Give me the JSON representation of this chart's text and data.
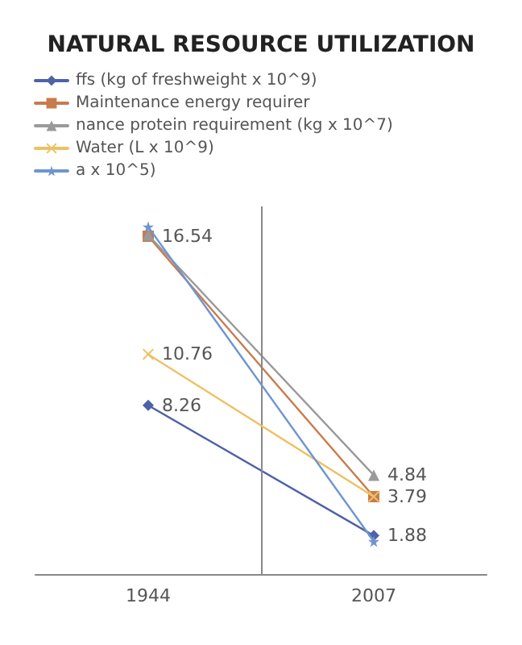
{
  "chart_data": {
    "type": "line",
    "title": "NATURAL RESOURCE UTILIZATION",
    "x": [
      1944,
      2007
    ],
    "xlim": [
      1912.5,
      2038.5
    ],
    "xticks": [
      1944,
      2007
    ],
    "legend": "top left",
    "grid": false,
    "tick_labels": "x",
    "ref_lines": [
      {
        "axis": "x",
        "value": 1975.5,
        "color": "#888888"
      }
    ],
    "series": [
      {
        "name": "ffs (kg of freshweight x 10^9)",
        "color": "#4e62a8",
        "marker": "diamond",
        "values": [
          8.26,
          1.88
        ],
        "value_labels": [
          "8.26",
          "1.88"
        ]
      },
      {
        "name": "Maintenance energy requirer",
        "color": "#c97b4b",
        "marker": "square",
        "values": [
          16.54,
          3.79
        ],
        "value_labels": [
          "16.54",
          "3.79"
        ]
      },
      {
        "name": "nance protein requirement (kg x 10^7)",
        "color": "#9a9a9a",
        "marker": "triangle",
        "values": [
          16.6,
          4.84
        ],
        "value_labels": [
          null,
          "4.84"
        ]
      },
      {
        "name": "Water (L x 10^9)",
        "color": "#eec062",
        "marker": "cross",
        "values": [
          10.76,
          3.79
        ],
        "value_labels": [
          "10.76",
          null
        ]
      },
      {
        "name": "a x 10^5)",
        "color": "#6f95d0",
        "marker": "star",
        "values": [
          17.0,
          1.6
        ],
        "value_labels": [
          null,
          null
        ]
      }
    ]
  }
}
